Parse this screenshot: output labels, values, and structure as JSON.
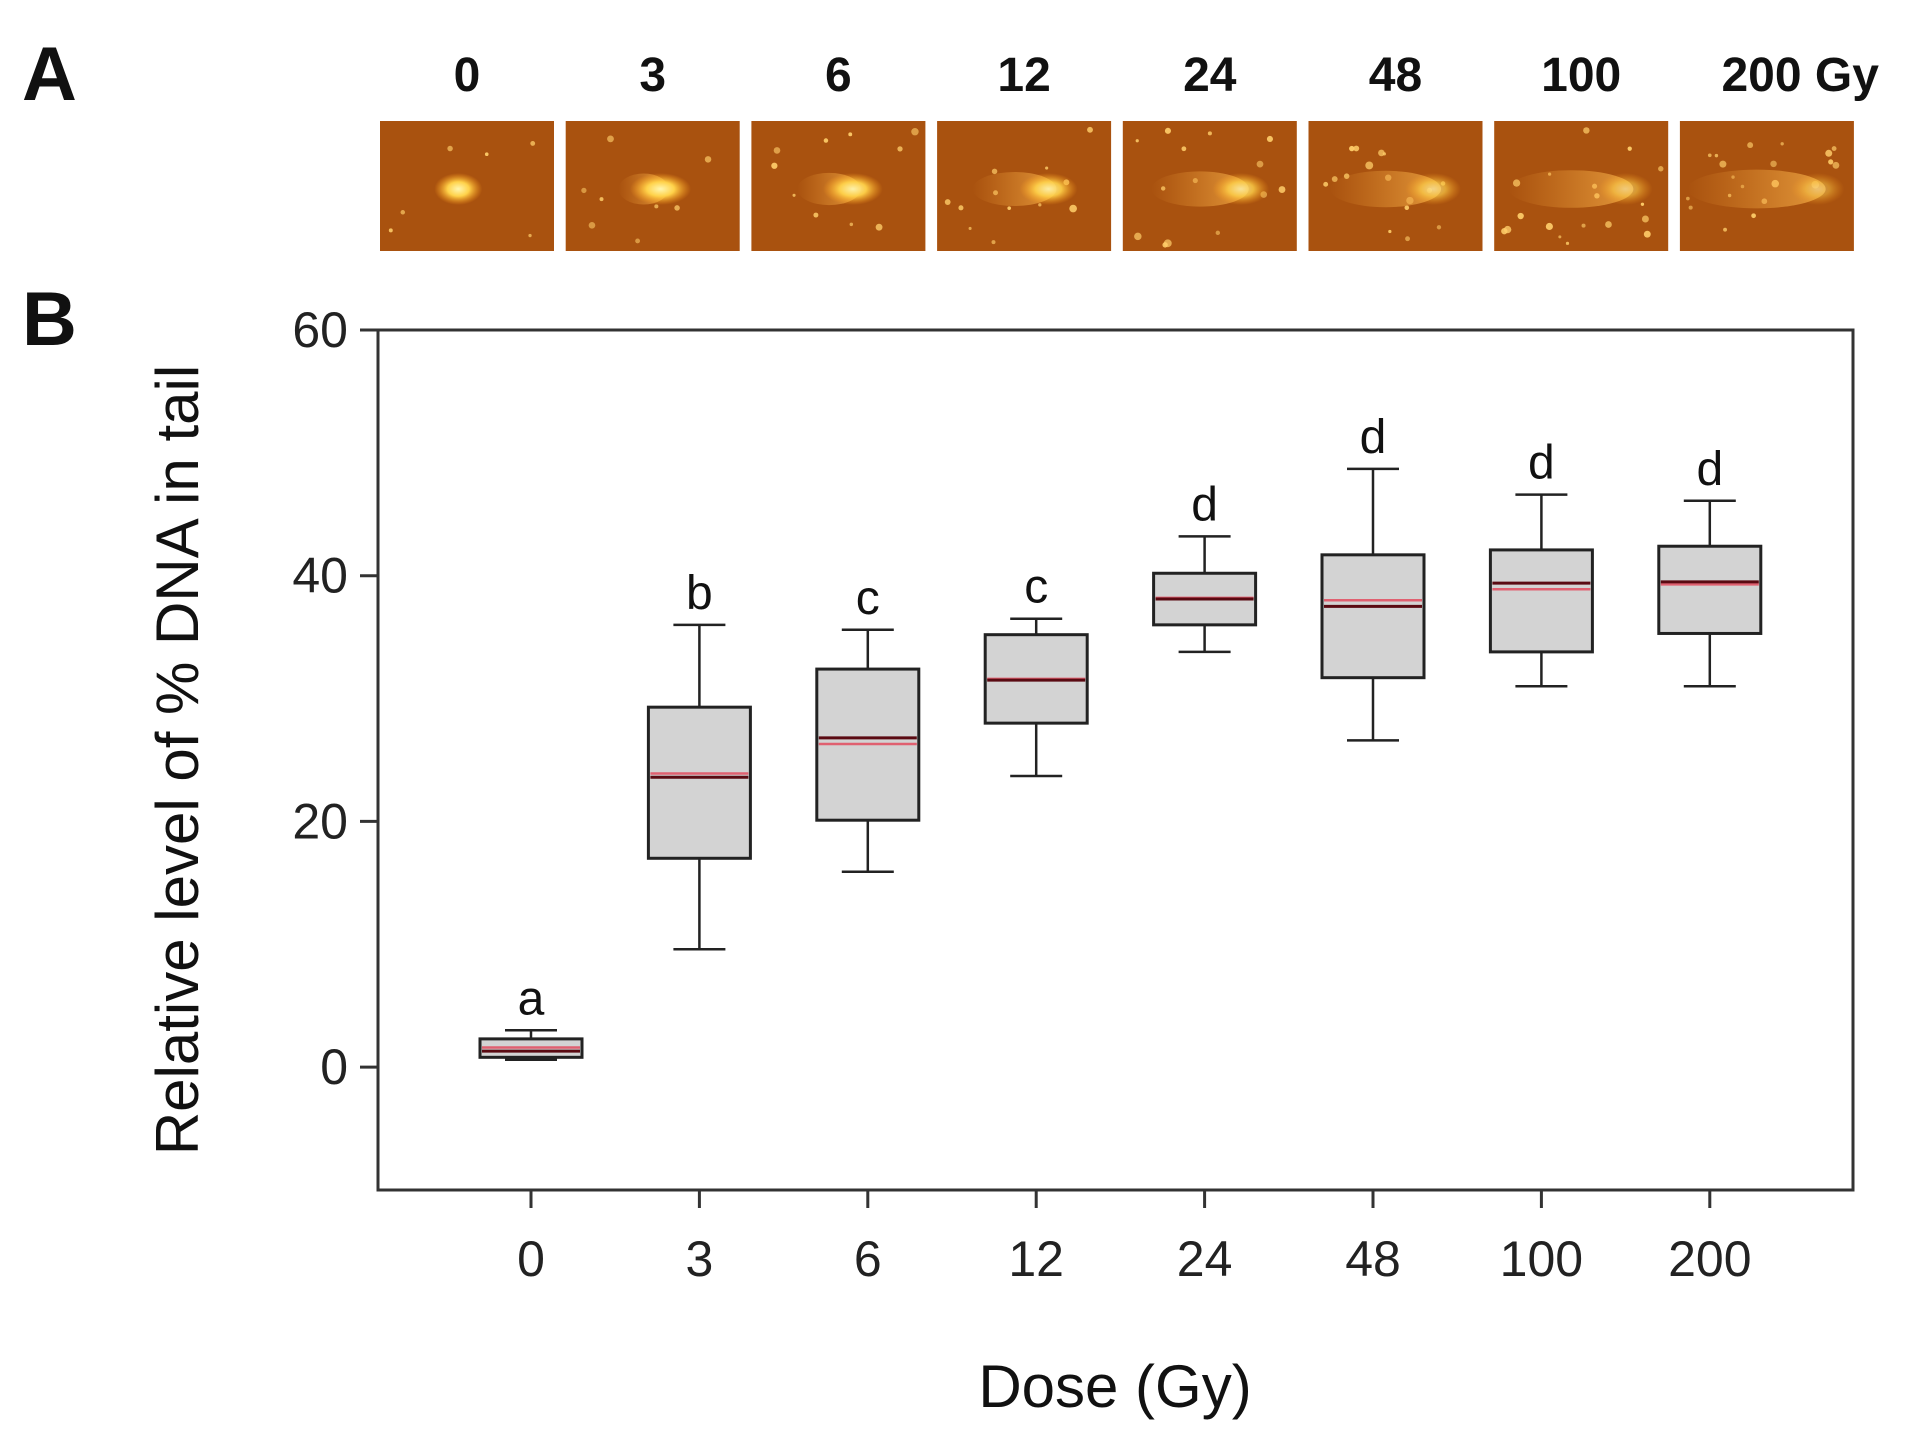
{
  "panel_a": {
    "label": "A",
    "dose_headers": [
      "0",
      "3",
      "6",
      "12",
      "24",
      "48",
      "100",
      "200 Gy"
    ],
    "image_description_ids": [
      "comet-0",
      "comet-3",
      "comet-6",
      "comet-12",
      "comet-24",
      "comet-48",
      "comet-100",
      "comet-200"
    ],
    "colors": {
      "background": "#a9520f",
      "head": "#ffd24a",
      "tail": "#f2a23a"
    },
    "tail_extent": [
      0.0,
      0.25,
      0.35,
      0.5,
      0.6,
      0.7,
      0.8,
      0.9
    ],
    "head_brightness": [
      1.0,
      1.0,
      0.95,
      0.9,
      0.8,
      0.65,
      0.55,
      0.45
    ]
  },
  "panel_b": {
    "label": "B"
  },
  "chart_data": {
    "type": "box",
    "title": "",
    "xlabel": "Dose (Gy)",
    "ylabel": "Relative level of % DNA in tail",
    "ylim": [
      -10,
      60
    ],
    "yticks": [
      0,
      20,
      40,
      60
    ],
    "categories": [
      "0",
      "3",
      "6",
      "12",
      "24",
      "48",
      "100",
      "200"
    ],
    "boxes": [
      {
        "whisker_low": 0.6,
        "q1": 0.8,
        "median": 1.3,
        "mean": 1.6,
        "q3": 2.3,
        "whisker_high": 3.0,
        "sig": "a"
      },
      {
        "whisker_low": 9.6,
        "q1": 17.0,
        "median": 23.6,
        "mean": 23.9,
        "q3": 29.3,
        "whisker_high": 36.0,
        "sig": "b"
      },
      {
        "whisker_low": 15.9,
        "q1": 20.1,
        "median": 26.8,
        "mean": 26.3,
        "q3": 32.4,
        "whisker_high": 35.6,
        "sig": "c"
      },
      {
        "whisker_low": 23.7,
        "q1": 28.0,
        "median": 31.5,
        "mean": 31.6,
        "q3": 35.2,
        "whisker_high": 36.5,
        "sig": "c"
      },
      {
        "whisker_low": 33.8,
        "q1": 36.0,
        "median": 38.1,
        "mean": 38.2,
        "q3": 40.2,
        "whisker_high": 43.2,
        "sig": "d"
      },
      {
        "whisker_low": 26.6,
        "q1": 31.7,
        "median": 37.5,
        "mean": 38.0,
        "q3": 41.7,
        "whisker_high": 48.7,
        "sig": "d"
      },
      {
        "whisker_low": 31.0,
        "q1": 33.8,
        "median": 39.4,
        "mean": 38.9,
        "q3": 42.1,
        "whisker_high": 46.6,
        "sig": "d"
      },
      {
        "whisker_low": 31.0,
        "q1": 35.3,
        "median": 39.5,
        "mean": 39.3,
        "q3": 42.4,
        "whisker_high": 46.1,
        "sig": "d"
      }
    ],
    "colors": {
      "box_fill": "#d3d3d3",
      "box_stroke": "#222222",
      "median": "#5a0a12",
      "mean": "#e06070",
      "frame": "#333333"
    },
    "grid": false,
    "legend": "none"
  }
}
